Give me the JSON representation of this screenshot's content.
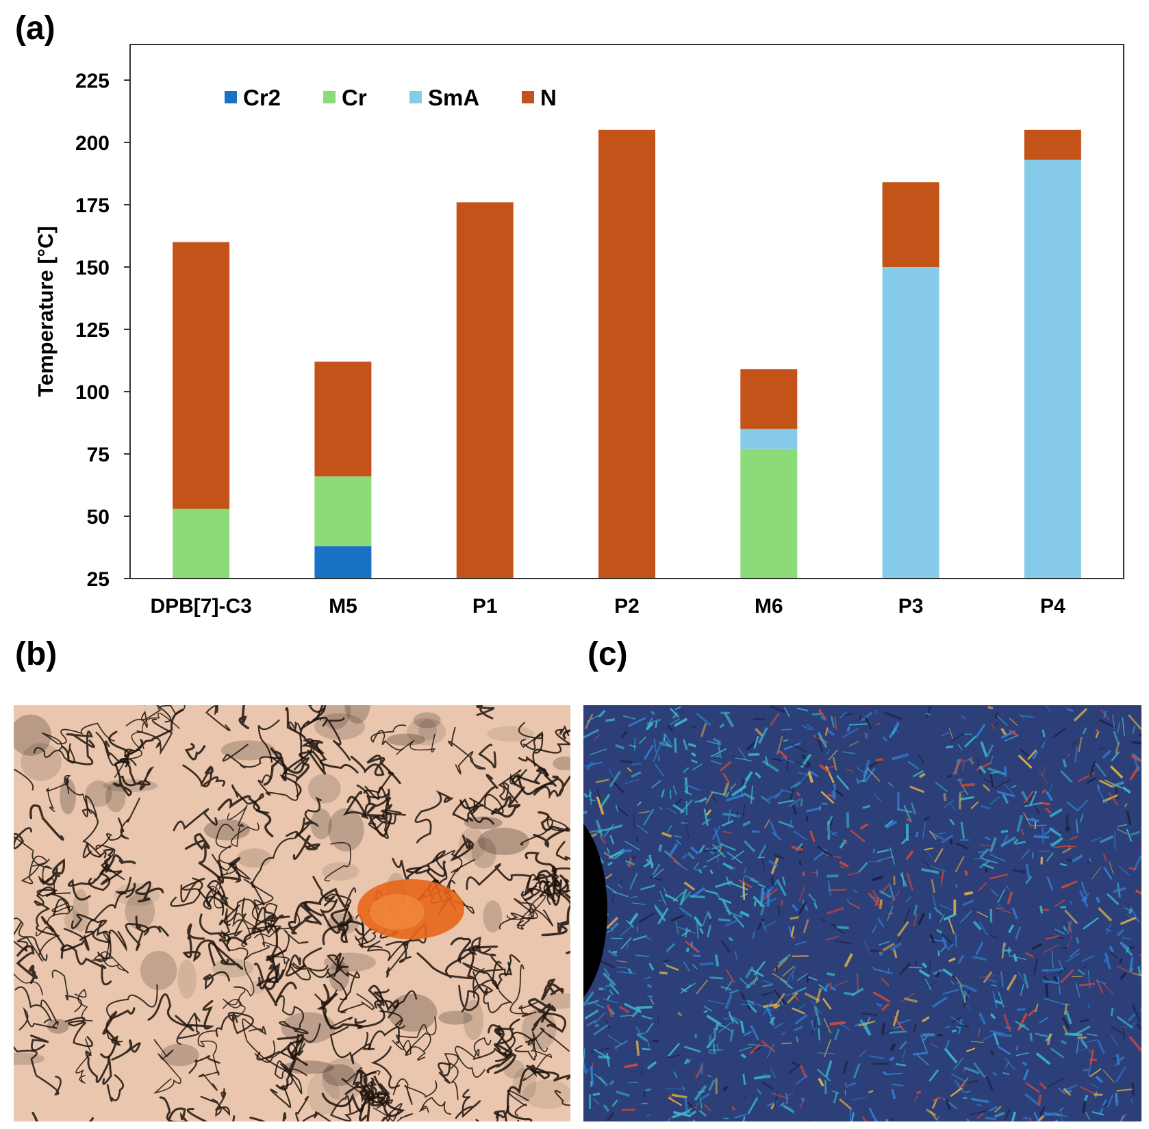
{
  "panels": {
    "a": "(a)",
    "b": "(b)",
    "c": "(c)"
  },
  "chart_data": {
    "type": "bar",
    "stacked": true,
    "title": "",
    "xlabel": "",
    "ylabel": "Temperature [°C]",
    "ylim": [
      25,
      240
    ],
    "yticks": [
      25,
      50,
      75,
      100,
      125,
      150,
      175,
      200,
      225
    ],
    "grid": false,
    "legend_position": "top-left",
    "categories": [
      "DPB[7]-C3",
      "M5",
      "P1",
      "P2",
      "M6",
      "P3",
      "P4"
    ],
    "series": [
      {
        "name": "Cr2",
        "color": "#1a72c4",
        "segments": [
          null,
          [
            25,
            38
          ],
          null,
          null,
          null,
          null,
          null
        ]
      },
      {
        "name": "Cr",
        "color": "#8bdb78",
        "segments": [
          [
            25,
            53
          ],
          [
            38,
            66
          ],
          null,
          null,
          [
            25,
            77
          ],
          null,
          null
        ]
      },
      {
        "name": "SmA",
        "color": "#86ccea",
        "segments": [
          null,
          null,
          null,
          null,
          [
            77,
            85
          ],
          [
            25,
            150
          ],
          [
            25,
            193
          ]
        ]
      },
      {
        "name": "N",
        "color": "#c4531a",
        "segments": [
          [
            53,
            160
          ],
          [
            66,
            112
          ],
          [
            25,
            176
          ],
          [
            25,
            205
          ],
          [
            85,
            109
          ],
          [
            150,
            184
          ],
          [
            193,
            205
          ]
        ]
      }
    ]
  },
  "micrographs": {
    "b": {
      "name": "schlieren-texture",
      "base": "#e9c6ad",
      "dark": "#1c120c",
      "highlight": "#e8651a"
    },
    "c": {
      "name": "focal-conic-texture",
      "base": "#2c3f78",
      "cyan": "#3cb6c8",
      "blue": "#2f7fd6",
      "red": "#d24a38"
    }
  }
}
